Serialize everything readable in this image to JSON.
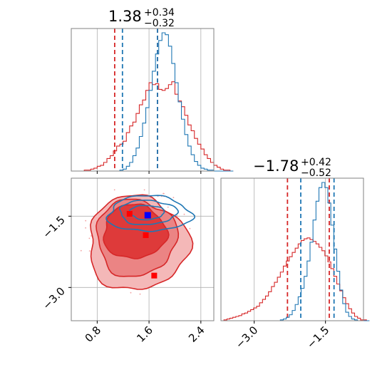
{
  "chart_data": {
    "type": "corner",
    "parameters": [
      {
        "title_value": "1.38",
        "title_plus": "+0.34",
        "title_minus": "−0.32",
        "ticks": [
          0.8,
          1.6,
          2.4
        ],
        "tick_labels": [
          "0.8",
          "1.6",
          "2.4"
        ],
        "range": [
          0.4,
          2.6
        ]
      },
      {
        "title_value": "−1.78",
        "title_plus": "+0.42",
        "title_minus": "−0.52",
        "ticks": [
          -3.0,
          -1.5
        ],
        "tick_labels": [
          "−3.0",
          "−1.5"
        ],
        "range": [
          -3.7,
          -0.7
        ]
      }
    ],
    "series": [
      {
        "color": "#d62728",
        "quantile_lines": {
          "p0": [
            1.07,
            1.73
          ],
          "p1": [
            -2.3,
            -1.42
          ]
        },
        "markers_2d": [
          [
            1.3,
            -1.45
          ],
          [
            1.55,
            -1.9
          ],
          [
            1.68,
            -2.75
          ]
        ],
        "hist_p0": {
          "start": 0.4,
          "bin_width": 0.05,
          "counts": [
            0,
            0,
            0,
            0,
            1,
            1,
            2,
            3,
            5,
            6,
            9,
            13,
            16,
            21,
            26,
            28,
            31,
            40,
            47,
            51,
            60,
            69,
            74,
            84,
            92,
            90,
            91,
            85,
            84,
            86,
            90,
            93,
            80,
            73,
            67,
            58,
            48,
            42,
            34,
            28,
            23,
            17,
            13,
            9,
            6,
            4,
            2,
            1,
            1,
            0
          ]
        },
        "hist_p1": {
          "start": -3.7,
          "bin_width": 0.0625,
          "counts": [
            0,
            1,
            2,
            3,
            4,
            5,
            6,
            8,
            9,
            11,
            13,
            15,
            17,
            21,
            25,
            29,
            34,
            40,
            45,
            51,
            57,
            64,
            70,
            75,
            80,
            85,
            90,
            94,
            96,
            97,
            95,
            93,
            90,
            86,
            82,
            76,
            69,
            61,
            52,
            43,
            35,
            27,
            20,
            14,
            9,
            5,
            3,
            1,
            1,
            0
          ]
        }
      },
      {
        "color": "#1f77b4",
        "quantile_lines": {
          "p0": [
            1.19,
            1.73
          ],
          "p1": [
            -2.02,
            -1.32
          ]
        },
        "markers_2d": [
          [
            1.58,
            -1.48
          ]
        ],
        "hist_p0": {
          "start": 0.4,
          "bin_width": 0.05,
          "counts": [
            0,
            0,
            0,
            0,
            0,
            0,
            0,
            0,
            0,
            0,
            0,
            0,
            0,
            0,
            0,
            1,
            2,
            5,
            9,
            16,
            24,
            36,
            50,
            66,
            84,
            104,
            122,
            136,
            144,
            142,
            130,
            112,
            92,
            72,
            54,
            38,
            26,
            17,
            10,
            6,
            3,
            2,
            1,
            1,
            0,
            0,
            0,
            0,
            0,
            0
          ]
        },
        "hist_p1": {
          "start": -3.7,
          "bin_width": 0.0625,
          "counts": [
            0,
            0,
            0,
            0,
            0,
            0,
            0,
            0,
            0,
            0,
            0,
            0,
            0,
            0,
            0,
            0,
            0,
            0,
            0,
            0,
            1,
            2,
            4,
            7,
            12,
            19,
            28,
            38,
            52,
            70,
            92,
            118,
            140,
            156,
            162,
            156,
            138,
            112,
            84,
            58,
            36,
            20,
            10,
            5,
            2,
            1,
            0,
            0,
            0,
            0
          ]
        }
      }
    ],
    "grid": true
  }
}
